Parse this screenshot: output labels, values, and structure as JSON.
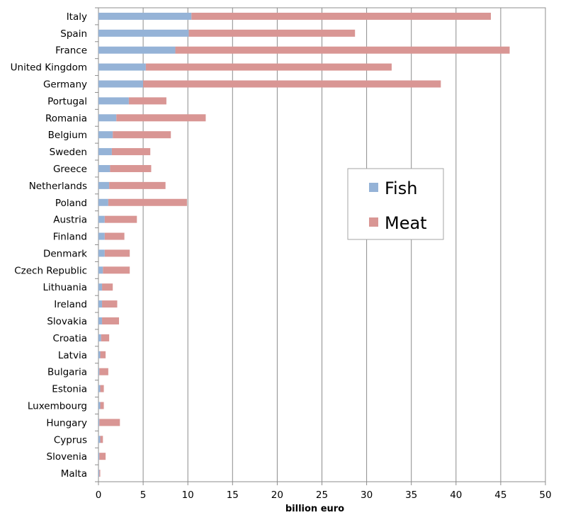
{
  "chart_data": {
    "type": "bar",
    "orientation": "horizontal",
    "stacked": true,
    "title": "",
    "xlabel": "billion euro",
    "ylabel": "",
    "xlim": [
      0,
      50
    ],
    "x_ticks": [
      0,
      5,
      10,
      15,
      20,
      25,
      30,
      35,
      40,
      45,
      50
    ],
    "grid": true,
    "legend_position": "center-right",
    "categories": [
      "Italy",
      "Spain",
      "France",
      "United Kingdom",
      "Germany",
      "Portugal",
      "Romania",
      "Belgium",
      "Sweden",
      "Greece",
      "Netherlands",
      "Poland",
      "Austria",
      "Finland",
      "Denmark",
      "Czech Republic",
      "Lithuania",
      "Ireland",
      "Slovakia",
      "Croatia",
      "Latvia",
      "Bulgaria",
      "Estonia",
      "Luxembourg",
      "Hungary",
      "Cyprus",
      "Slovenia",
      "Malta"
    ],
    "series": [
      {
        "name": "Fish",
        "color": "#95B3D7",
        "values": [
          10.4,
          10.1,
          8.6,
          5.3,
          5.0,
          3.4,
          2.0,
          1.6,
          1.5,
          1.3,
          1.2,
          1.1,
          0.7,
          0.7,
          0.7,
          0.5,
          0.4,
          0.4,
          0.4,
          0.3,
          0.2,
          0.1,
          0.2,
          0.2,
          0.1,
          0.2,
          0.1,
          0.1
        ]
      },
      {
        "name": "Meat",
        "color": "#D99694",
        "values": [
          33.5,
          18.6,
          37.4,
          27.5,
          33.3,
          4.2,
          10.0,
          6.5,
          4.3,
          4.6,
          6.3,
          8.8,
          3.6,
          2.2,
          2.8,
          3.0,
          1.2,
          1.7,
          1.9,
          0.9,
          0.6,
          1.0,
          0.4,
          0.4,
          2.3,
          0.3,
          0.7,
          0.1
        ]
      }
    ]
  }
}
